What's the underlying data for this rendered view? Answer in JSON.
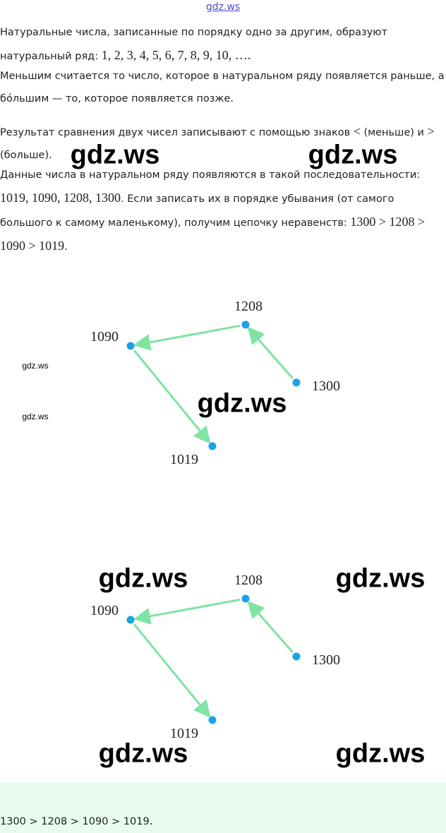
{
  "header": {
    "link": "gdz.ws"
  },
  "paragraphs": [
    [
      "Натуральные числа, записанные по порядку одно за другим, образуют натуральный ряд: ",
      "1,  2,  3,  4,  5,  6,  7,  8,  9,  10,  …."
    ],
    [
      "Меньшим считается то число, которое в натуральном ряду появляется раньше, а бо́льшим — то, которое появляется позже."
    ],
    [
      "Результат сравнения двух чисел записывают с помощью знаков ",
      "<",
      " (меньше) и ",
      ">",
      " (больше)."
    ],
    [
      "Данные числа в натуральном ряду появляются в такой последовательности: ",
      "1019, 1090, 1208, 1300",
      ". Если записать их в порядке убывания (от самого большого к самому маленькому), получим цепочку неравенств: ",
      "1300 > 1208 > 1090 > 1019",
      "."
    ]
  ],
  "diagrams": [
    {
      "nodes": [
        "1208",
        "1090",
        "1300",
        "1019"
      ]
    },
    {
      "nodes": [
        "1208",
        "1090",
        "1300",
        "1019"
      ]
    }
  ],
  "answer": [
    "1300 > 1208 > 1090 > 1019",
    "."
  ],
  "watermarks": [
    "gdz.ws",
    "gdz.ws",
    "gdz.ws",
    "gdz.ws",
    "gdz.ws",
    "gdz.ws",
    "gdz.ws",
    "gdz.ws",
    "gdz.ws"
  ]
}
